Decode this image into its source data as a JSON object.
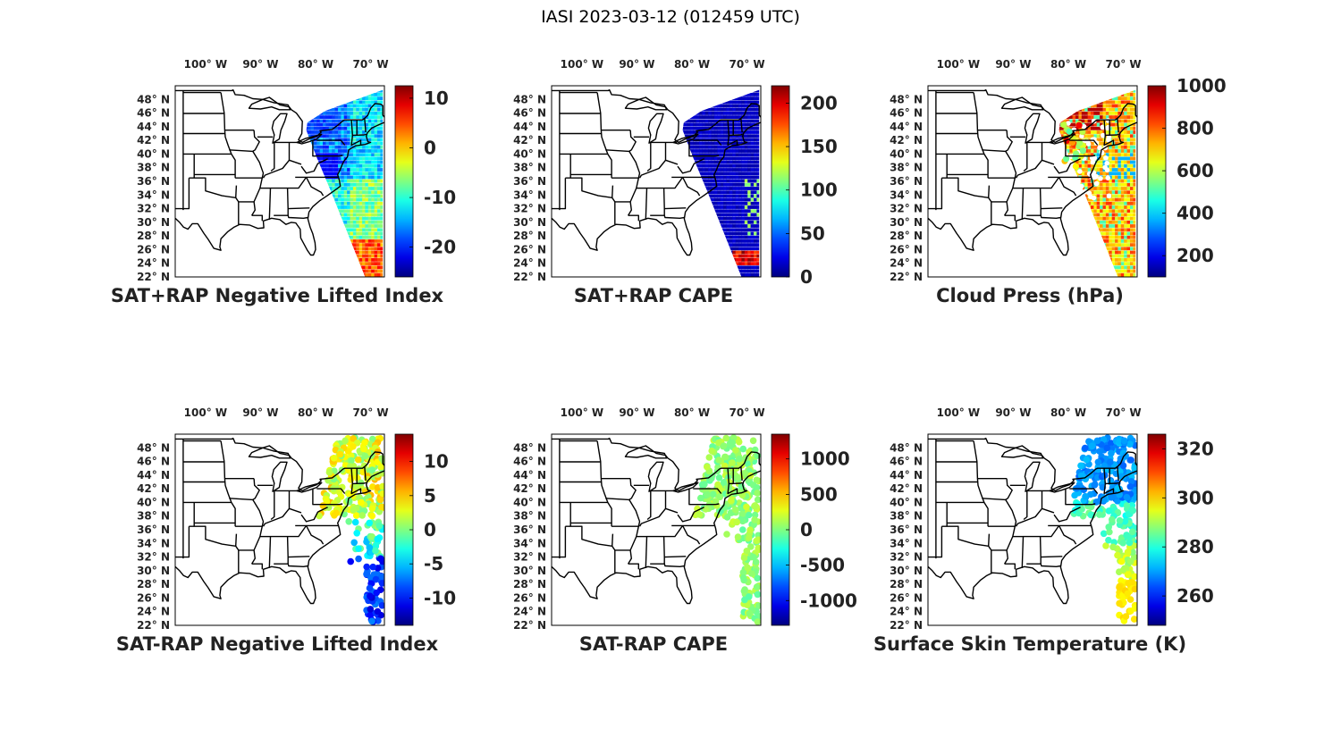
{
  "figure": {
    "title": "IASI 2023-03-12 (012459 UTC)"
  },
  "axes": {
    "lon_ticks": [
      {
        "value": -100,
        "label": "100° W"
      },
      {
        "value": -90,
        "label": "90° W"
      },
      {
        "value": -80,
        "label": "80° W"
      },
      {
        "value": -70,
        "label": "70° W"
      }
    ],
    "lat_ticks": [
      {
        "value": 48,
        "label": "48° N"
      },
      {
        "value": 46,
        "label": "46° N"
      },
      {
        "value": 44,
        "label": "44° N"
      },
      {
        "value": 42,
        "label": "42° N"
      },
      {
        "value": 40,
        "label": "40° N"
      },
      {
        "value": 38,
        "label": "38° N"
      },
      {
        "value": 36,
        "label": "36° N"
      },
      {
        "value": 34,
        "label": "34° N"
      },
      {
        "value": 32,
        "label": "32° N"
      },
      {
        "value": 30,
        "label": "30° N"
      },
      {
        "value": 28,
        "label": "28° N"
      },
      {
        "value": 26,
        "label": "26° N"
      },
      {
        "value": 24,
        "label": "24° N"
      },
      {
        "value": 22,
        "label": "22° N"
      }
    ],
    "xlim": [
      -105.5,
      -67.5
    ],
    "ylim": [
      22,
      50
    ]
  },
  "colormap": "jet",
  "panels": [
    {
      "id": "sat-rap-neg-li",
      "title": "SAT+RAP Negative Lifted Index",
      "colorbar": {
        "min": -26,
        "max": 12.5,
        "ticks": [
          {
            "value": 10,
            "label": "10"
          },
          {
            "value": 0,
            "label": "0"
          },
          {
            "value": -10,
            "label": "-10"
          },
          {
            "value": -20,
            "label": "-20"
          }
        ]
      },
      "field_type": "swath"
    },
    {
      "id": "sat-rap-cape",
      "title": "SAT+RAP CAPE",
      "colorbar": {
        "min": 0,
        "max": 220,
        "ticks": [
          {
            "value": 200,
            "label": "200"
          },
          {
            "value": 150,
            "label": "150"
          },
          {
            "value": 100,
            "label": "100"
          },
          {
            "value": 50,
            "label": "50"
          },
          {
            "value": 0,
            "label": "0"
          }
        ]
      },
      "field_type": "swath"
    },
    {
      "id": "cloud-press",
      "title": "Cloud Press (hPa)",
      "colorbar": {
        "min": 100,
        "max": 1000,
        "ticks": [
          {
            "value": 1000,
            "label": "1000"
          },
          {
            "value": 800,
            "label": "800"
          },
          {
            "value": 600,
            "label": "600"
          },
          {
            "value": 400,
            "label": "400"
          },
          {
            "value": 200,
            "label": "200"
          }
        ]
      },
      "field_type": "swath-scattered"
    },
    {
      "id": "sat-minus-rap-neg-li",
      "title": "SAT-RAP Negative Lifted Index",
      "colorbar": {
        "min": -14,
        "max": 14,
        "ticks": [
          {
            "value": 10,
            "label": "10"
          },
          {
            "value": 5,
            "label": "5"
          },
          {
            "value": 0,
            "label": "0"
          },
          {
            "value": -5,
            "label": "-5"
          },
          {
            "value": -10,
            "label": "-10"
          }
        ]
      },
      "field_type": "dots"
    },
    {
      "id": "sat-minus-rap-cape",
      "title": "SAT-RAP CAPE",
      "colorbar": {
        "min": -1350,
        "max": 1350,
        "ticks": [
          {
            "value": 1000,
            "label": "1000"
          },
          {
            "value": 500,
            "label": "500"
          },
          {
            "value": 0,
            "label": "0"
          },
          {
            "value": -500,
            "label": "-500"
          },
          {
            "value": -1000,
            "label": "-1000"
          }
        ]
      },
      "field_type": "dots"
    },
    {
      "id": "surface-skin-temp",
      "title": "Surface Skin Temperature (K)",
      "colorbar": {
        "min": 248,
        "max": 326,
        "ticks": [
          {
            "value": 320,
            "label": "320"
          },
          {
            "value": 300,
            "label": "300"
          },
          {
            "value": 280,
            "label": "280"
          },
          {
            "value": 260,
            "label": "260"
          }
        ]
      },
      "field_type": "dots"
    }
  ]
}
